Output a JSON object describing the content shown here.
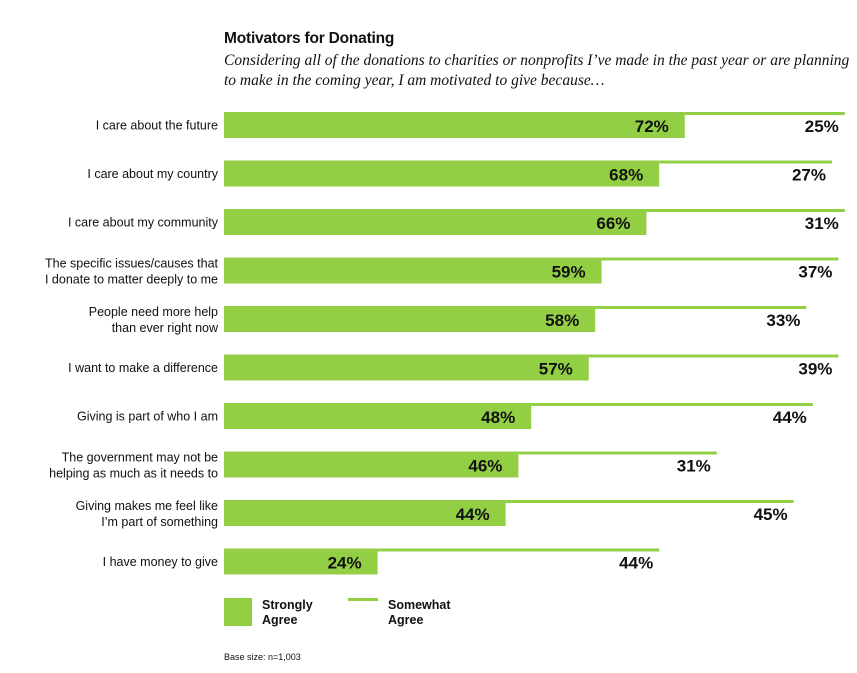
{
  "title": "Motivators for Donating",
  "subtitle": "Considering all of the donations to charities or nonprofits I’ve made in the past year or are planning to make in the coming year, I am motivated to give because…",
  "legend": {
    "strong": "Strongly Agree",
    "somewhat": "Somewhat Agree"
  },
  "footnote": "Base size: n=1,003",
  "colors": {
    "bar": "#93cf45"
  },
  "chart_data": {
    "type": "bar",
    "orientation": "horizontal",
    "stacked": true,
    "categories": [
      [
        "I care about the future"
      ],
      [
        "I care about my country"
      ],
      [
        "I care about my community"
      ],
      [
        "The specific issues/causes that",
        "I donate to matter deeply to me"
      ],
      [
        "People need more help",
        "than ever right now"
      ],
      [
        "I want to make a difference"
      ],
      [
        "Giving is part of who I am"
      ],
      [
        "The government may not be",
        "helping as much as it needs to"
      ],
      [
        "Giving makes me feel like",
        "I’m part of something"
      ],
      [
        "I have money to give"
      ]
    ],
    "series": [
      {
        "name": "Strongly Agree",
        "values": [
          72,
          68,
          66,
          59,
          58,
          57,
          48,
          46,
          44,
          24
        ]
      },
      {
        "name": "Somewhat Agree",
        "values": [
          25,
          27,
          31,
          37,
          33,
          39,
          44,
          31,
          45,
          44
        ]
      }
    ],
    "value_format": "{v}%",
    "xlim": [
      0,
      100
    ],
    "legend_position": "bottom-left"
  }
}
